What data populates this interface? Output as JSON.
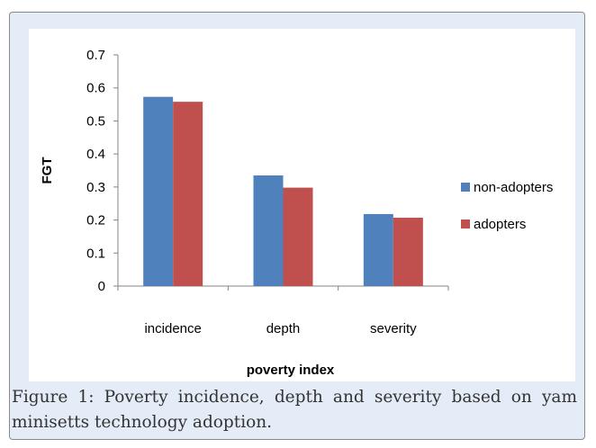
{
  "caption": "Figure 1: Poverty incidence, depth and severity based on yam minisetts technology adoption.",
  "chart_data": {
    "type": "bar",
    "categories": [
      "incidence",
      "depth",
      "severity"
    ],
    "series": [
      {
        "name": "non-adopters",
        "values": [
          0.573,
          0.335,
          0.218
        ],
        "color": "#4f81bd"
      },
      {
        "name": "adopters",
        "values": [
          0.558,
          0.298,
          0.207
        ],
        "color": "#c0504d"
      }
    ],
    "title": "",
    "xlabel": "poverty index",
    "ylabel": "FGT",
    "ylim": [
      0,
      0.7
    ],
    "yticks": [
      "0",
      "0.1",
      "0.2",
      "0.3",
      "0.4",
      "0.5",
      "0.6",
      "0.7"
    ],
    "grid": false,
    "legend": "right"
  }
}
